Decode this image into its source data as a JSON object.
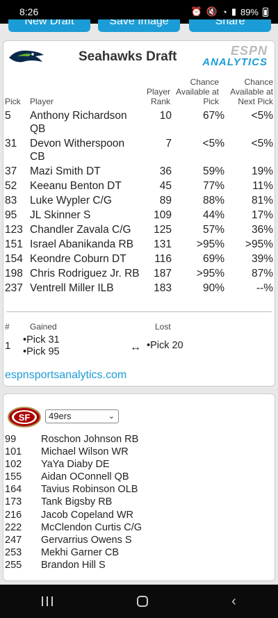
{
  "status": {
    "time": "8:26",
    "battery": "89%"
  },
  "top_buttons": [
    "New Draft",
    "Save Image",
    "Share"
  ],
  "draft_card": {
    "title": "Seahawks Draft",
    "brand_line1": "ESPN",
    "brand_line2": "ANALYTICS",
    "columns": {
      "pick": "Pick",
      "player": "Player",
      "rank": "Player Rank",
      "avail": "Chance Available at Pick",
      "next": "Chance Available at Next Pick"
    },
    "rows": [
      {
        "pick": "5",
        "player": "Anthony Richardson QB",
        "rank": "10",
        "avail": "67%",
        "next": "<5%"
      },
      {
        "pick": "31",
        "player": "Devon Witherspoon CB",
        "rank": "7",
        "avail": "<5%",
        "next": "<5%"
      },
      {
        "pick": "37",
        "player": "Mazi Smith DT",
        "rank": "36",
        "avail": "59%",
        "next": "19%"
      },
      {
        "pick": "52",
        "player": "Keeanu Benton DT",
        "rank": "45",
        "avail": "77%",
        "next": "11%"
      },
      {
        "pick": "83",
        "player": "Luke Wypler C/G",
        "rank": "89",
        "avail": "88%",
        "next": "81%"
      },
      {
        "pick": "95",
        "player": "JL Skinner S",
        "rank": "109",
        "avail": "44%",
        "next": "17%"
      },
      {
        "pick": "123",
        "player": "Chandler Zavala C/G",
        "rank": "125",
        "avail": "57%",
        "next": "36%"
      },
      {
        "pick": "151",
        "player": "Israel Abanikanda RB",
        "rank": "131",
        "avail": ">95%",
        "next": ">95%"
      },
      {
        "pick": "154",
        "player": "Keondre Coburn DT",
        "rank": "116",
        "avail": "69%",
        "next": "39%"
      },
      {
        "pick": "198",
        "player": "Chris Rodriguez Jr. RB",
        "rank": "187",
        "avail": ">95%",
        "next": "87%"
      },
      {
        "pick": "237",
        "player": "Ventrell Miller ILB",
        "rank": "183",
        "avail": "90%",
        "next": "--%"
      }
    ],
    "trade": {
      "num_label": "#",
      "gained_label": "Gained",
      "lost_label": "Lost",
      "num": "1",
      "gained": [
        "•Pick 31",
        "•Pick 95"
      ],
      "arrow": "↔",
      "lost": "•Pick 20"
    },
    "site_link": "espnsportsanalytics.com"
  },
  "team_card": {
    "selected_team": "49ers",
    "picks": [
      {
        "num": "99",
        "name": "Roschon Johnson RB"
      },
      {
        "num": "101",
        "name": "Michael Wilson WR"
      },
      {
        "num": "102",
        "name": "YaYa Diaby DE"
      },
      {
        "num": "155",
        "name": "Aidan OConnell QB"
      },
      {
        "num": "164",
        "name": "Tavius Robinson OLB"
      },
      {
        "num": "173",
        "name": "Tank Bigsby RB"
      },
      {
        "num": "216",
        "name": "Jacob Copeland WR"
      },
      {
        "num": "222",
        "name": "McClendon Curtis C/G"
      },
      {
        "num": "247",
        "name": "Gervarrius Owens S"
      },
      {
        "num": "253",
        "name": "Mekhi Garner CB"
      },
      {
        "num": "255",
        "name": "Brandon Hill S"
      }
    ]
  },
  "colors": {
    "accent": "#1b9cd6",
    "niners_red": "#aa0000",
    "niners_gold": "#b3995d"
  }
}
